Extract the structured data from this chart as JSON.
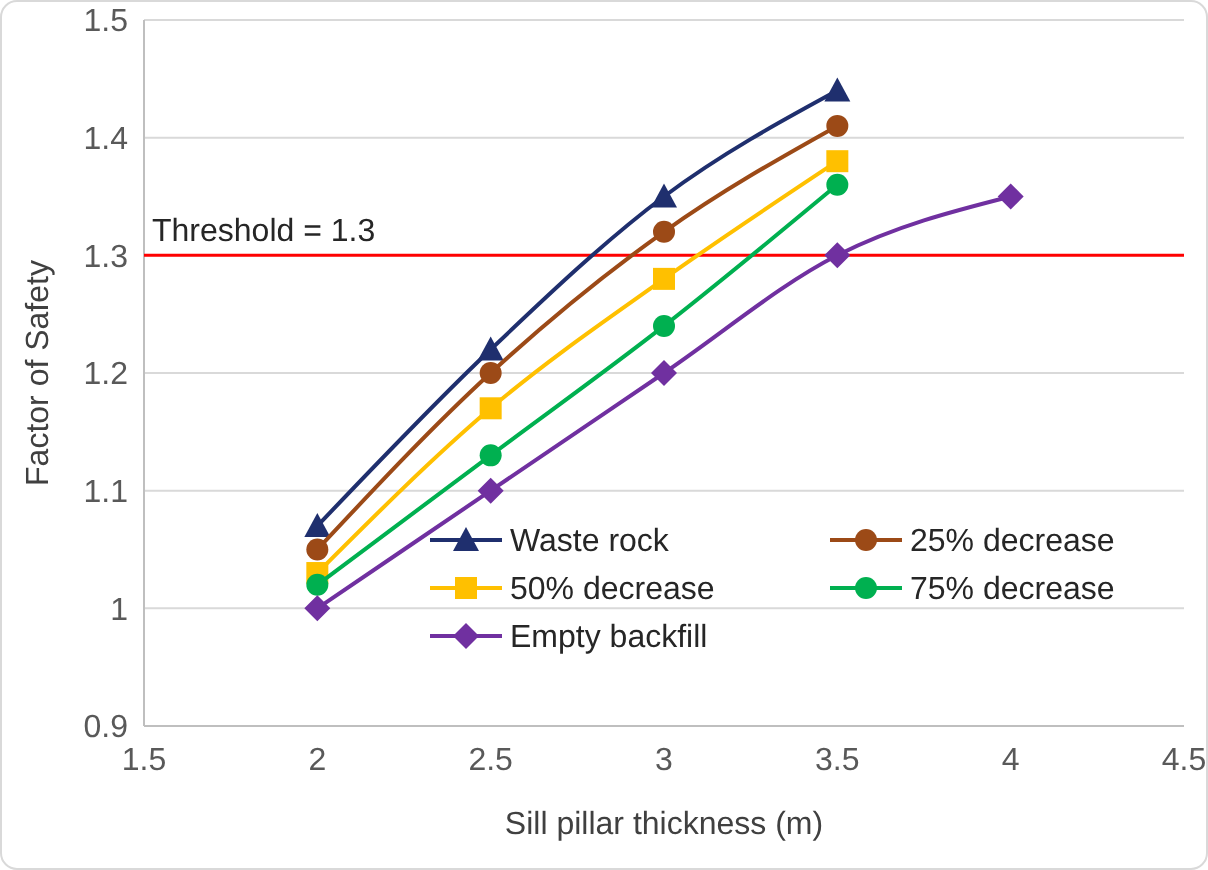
{
  "chart_data": {
    "type": "line",
    "xlabel": "Sill pillar thickness (m)",
    "ylabel": "Factor of Safety",
    "xlim": [
      1.5,
      4.5
    ],
    "xticks": [
      1.5,
      2,
      2.5,
      3,
      3.5,
      4,
      4.5
    ],
    "ylim": [
      0.9,
      1.5
    ],
    "yticks": [
      0.9,
      1,
      1.1,
      1.2,
      1.3,
      1.4,
      1.5
    ],
    "grid": "y",
    "legend": "bottom right",
    "series": [
      {
        "name": "Waste rock",
        "color": "#1f2f6e",
        "marker": "triangle",
        "x": [
          2,
          2.5,
          3,
          3.5
        ],
        "values": [
          1.07,
          1.22,
          1.35,
          1.44
        ]
      },
      {
        "name": "25% decrease",
        "color": "#9c4a17",
        "marker": "circle",
        "x": [
          2,
          2.5,
          3,
          3.5
        ],
        "values": [
          1.05,
          1.2,
          1.32,
          1.41
        ]
      },
      {
        "name": "50% decrease",
        "color": "#ffc000",
        "marker": "square",
        "x": [
          2,
          2.5,
          3,
          3.5
        ],
        "values": [
          1.03,
          1.17,
          1.28,
          1.38
        ]
      },
      {
        "name": "75% decrease",
        "color": "#00b050",
        "marker": "circle",
        "x": [
          2,
          2.5,
          3,
          3.5
        ],
        "values": [
          1.02,
          1.13,
          1.24,
          1.36
        ]
      },
      {
        "name": "Empty backfill",
        "color": "#7030a0",
        "marker": "diamond",
        "x": [
          2,
          2.5,
          3,
          3.5,
          4
        ],
        "values": [
          1.0,
          1.1,
          1.2,
          1.3,
          1.35
        ]
      }
    ],
    "ref_lines": [
      {
        "axis": "y",
        "value": 1.3,
        "label": "Threshold = 1.3",
        "color": "#ff0000"
      }
    ]
  }
}
